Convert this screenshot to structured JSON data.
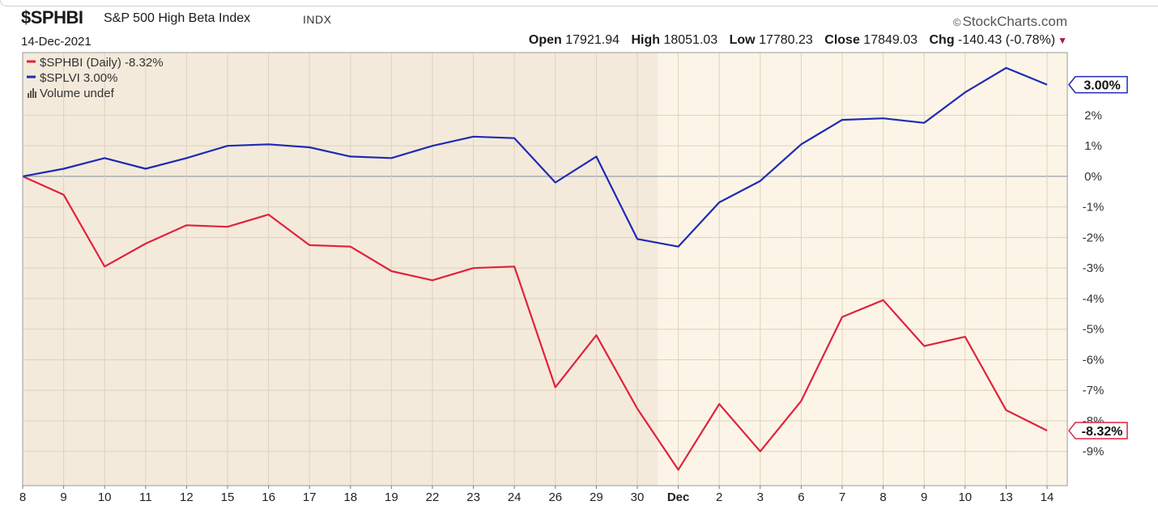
{
  "header": {
    "symbol": "$SPHBI",
    "name": "S&P 500 High Beta Index",
    "exchange": "INDX",
    "brand": "StockCharts.com",
    "brand_mark": "©",
    "date": "14-Dec-2021",
    "open_label": "Open",
    "open_value": "17921.94",
    "high_label": "High",
    "high_value": "18051.03",
    "low_label": "Low",
    "low_value": "17780.23",
    "close_label": "Close",
    "close_value": "17849.03",
    "chg_label": "Chg",
    "chg_value": "-140.43 (-0.78%)",
    "chg_arrow": "▼"
  },
  "legend": [
    {
      "text": "$SPHBI (Daily) -8.32%",
      "color": "#e0223d"
    },
    {
      "text": "$SPLVI 3.00%",
      "color": "#1f2ab5"
    },
    {
      "text": "Volume undef",
      "color": "#555555",
      "icon": "volume-bars-icon"
    }
  ],
  "colors": {
    "red": "#e0223d",
    "blue": "#1f2ab5",
    "bg_light": "#fcf5e7",
    "bg_dark": "#f4eadb",
    "grid": "#ddd2bf",
    "zero": "#9aa0a8"
  },
  "chart_data": {
    "type": "line",
    "x": [
      "8",
      "9",
      "10",
      "11",
      "12",
      "15",
      "16",
      "17",
      "18",
      "19",
      "22",
      "23",
      "24",
      "26",
      "29",
      "30",
      "Dec",
      "2",
      "3",
      "6",
      "7",
      "8",
      "9",
      "10",
      "13",
      "14"
    ],
    "x_bold": [
      "Dec"
    ],
    "shaded_region": [
      "8",
      "30"
    ],
    "series": [
      {
        "name": "$SPHBI (Daily)",
        "color": "#e0223d",
        "values": [
          0,
          -0.6,
          -2.95,
          -2.2,
          -1.6,
          -1.65,
          -1.25,
          -2.25,
          -2.3,
          -3.1,
          -3.4,
          -3.0,
          -2.95,
          -6.9,
          -5.2,
          -7.6,
          -9.6,
          -7.45,
          -9.0,
          -7.35,
          -4.6,
          -4.05,
          -5.55,
          -5.25,
          -7.65,
          -8.32
        ]
      },
      {
        "name": "$SPLVI",
        "color": "#1f2ab5",
        "values": [
          0,
          0.25,
          0.6,
          0.25,
          0.6,
          1.0,
          1.05,
          0.95,
          0.65,
          0.6,
          1.0,
          1.3,
          1.25,
          -0.2,
          0.65,
          -2.05,
          -2.3,
          -0.85,
          -0.15,
          1.05,
          1.85,
          1.9,
          1.75,
          2.75,
          3.55,
          3.0
        ]
      }
    ],
    "y_ticks": [
      "2%",
      "1%",
      "0%",
      "-1%",
      "-2%",
      "-3%",
      "-4%",
      "-5%",
      "-6%",
      "-7%",
      "-8%",
      "-9%"
    ],
    "y_tick_values": [
      2,
      1,
      0,
      -1,
      -2,
      -3,
      -4,
      -5,
      -6,
      -7,
      -8,
      -9
    ],
    "ylim": [
      -10.12,
      4.05
    ],
    "end_labels": [
      {
        "text": "3.00%",
        "value": 3.0,
        "color": "#1f2ab5"
      },
      {
        "text": "-8.32%",
        "value": -8.32,
        "color": "#e0223d"
      }
    ],
    "grid": true,
    "zero_line": true
  }
}
